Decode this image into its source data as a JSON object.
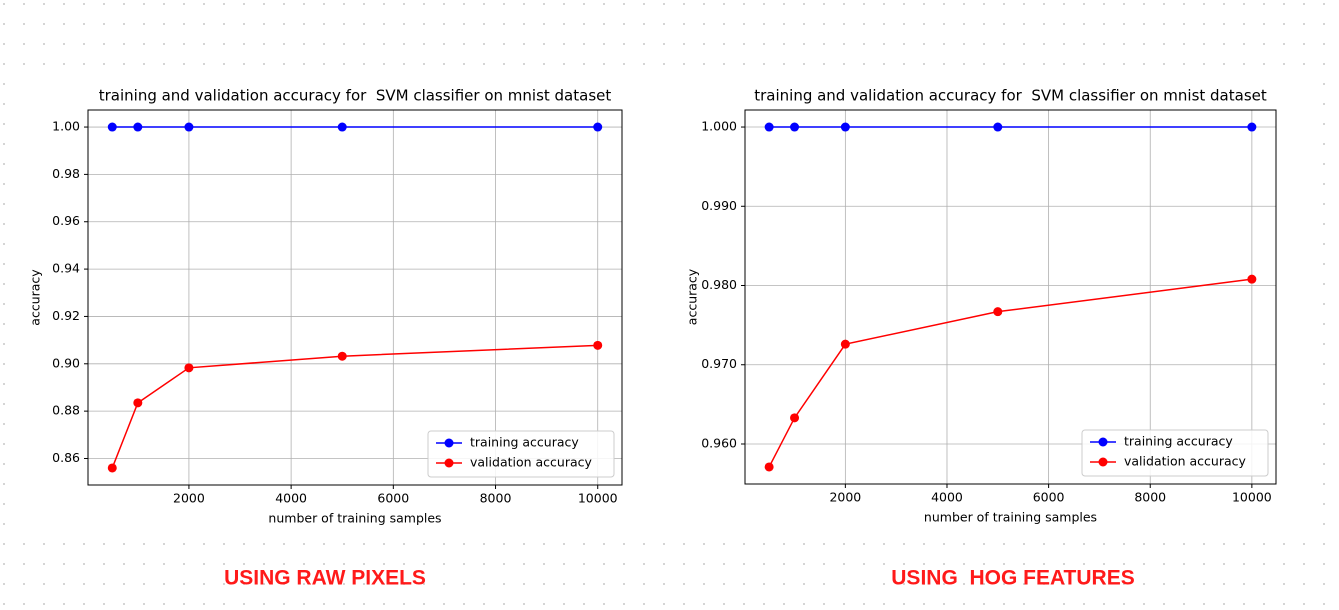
{
  "chart_data": [
    {
      "type": "line",
      "title": "training and validation accuracy for  SVM classifier on mnist dataset",
      "x_label": "number of training samples",
      "y_label": "accuracy",
      "x": [
        500,
        1000,
        2000,
        5000,
        10000
      ],
      "series": [
        {
          "name": "training accuracy",
          "color": "#0000ff",
          "values": [
            1.0,
            1.0,
            1.0,
            1.0,
            1.0
          ]
        },
        {
          "name": "validation accuracy",
          "color": "#ff0000",
          "values": [
            0.856,
            0.8835,
            0.8983,
            0.9032,
            0.9078
          ]
        }
      ],
      "xlim": [
        25,
        10475
      ],
      "xticks": [
        2000,
        4000,
        6000,
        8000,
        10000
      ],
      "ylim": [
        0.8488,
        1.0072
      ],
      "yticks": [
        0.86,
        0.88,
        {
          "value": 0.9,
          "label": "0.90"
        },
        0.92,
        0.94,
        0.96,
        0.98,
        {
          "value": 1.0,
          "label": "1.00"
        }
      ],
      "grid": true,
      "legend": "lower right",
      "annotation": "USING RAW PIXELS"
    },
    {
      "type": "line",
      "title": "training and validation accuracy for  SVM classifier on mnist dataset",
      "x_label": "number of training samples",
      "y_label": "accuracy",
      "x": [
        500,
        1000,
        2000,
        5000,
        10000
      ],
      "series": [
        {
          "name": "training accuracy",
          "color": "#0000ff",
          "values": [
            1.0,
            1.0,
            1.0,
            1.0,
            1.0
          ]
        },
        {
          "name": "validation accuracy",
          "color": "#ff0000",
          "values": [
            0.9571,
            0.9633,
            0.9726,
            0.9767,
            0.9808
          ]
        }
      ],
      "xlim": [
        25,
        10475
      ],
      "xticks": [
        2000,
        4000,
        6000,
        8000,
        10000
      ],
      "ylim": [
        0.95495,
        1.00215
      ],
      "yticks": [
        {
          "value": 0.96,
          "label": "0.960"
        },
        {
          "value": 0.97,
          "label": "0.970"
        },
        {
          "value": 0.98,
          "label": "0.980"
        },
        {
          "value": 0.99,
          "label": "0.990"
        },
        {
          "value": 1.0,
          "label": "1.000"
        }
      ],
      "grid": true,
      "legend": "lower right",
      "annotation": "USING  HOG FEATURES"
    }
  ]
}
